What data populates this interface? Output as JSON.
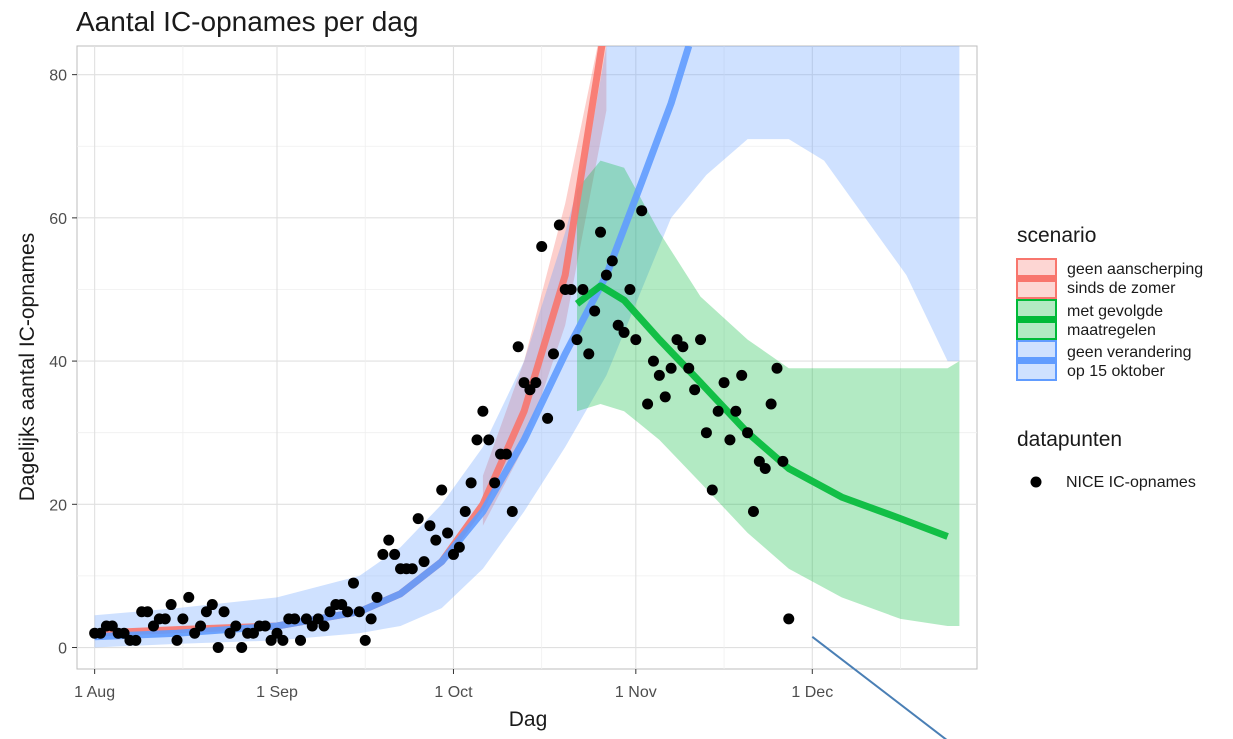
{
  "chart_data": {
    "type": "line",
    "title": "Aantal IC-opnames per dag",
    "xlabel": "Dag",
    "ylabel": "Dagelijks aantal IC-opnames",
    "x_ticks": [
      "1 Aug",
      "1 Sep",
      "1 Oct",
      "1 Nov",
      "1 Dec"
    ],
    "y_ticks": [
      "0",
      "20",
      "40",
      "60",
      "80"
    ],
    "xlim": [
      "2020-07-29",
      "2020-12-29"
    ],
    "ylim": [
      -3,
      84
    ],
    "legend_placement": "right",
    "legend": {
      "scenario_title": "scenario",
      "data_title": "datapunten",
      "data_label": "NICE IC-opnames"
    },
    "colors": {
      "red": "#f8766d",
      "green": "#00ba38",
      "blue": "#619cff",
      "points": "#000000",
      "annotation": "#4a7fb5"
    },
    "series": [
      {
        "name": "geen aanscherping\n sinds de zomer",
        "color": "#f8766d",
        "line": [
          [
            "2020-08-01",
            2
          ],
          [
            "2020-08-15",
            2.5
          ],
          [
            "2020-09-01",
            3
          ],
          [
            "2020-09-15",
            5
          ],
          [
            "2020-09-22",
            7.5
          ],
          [
            "2020-09-29",
            12
          ],
          [
            "2020-10-06",
            20
          ],
          [
            "2020-10-13",
            33
          ],
          [
            "2020-10-20",
            52
          ],
          [
            "2020-10-27",
            88
          ]
        ],
        "band_upper": [
          [
            "2020-10-06",
            24
          ],
          [
            "2020-10-13",
            40
          ],
          [
            "2020-10-20",
            62
          ],
          [
            "2020-10-27",
            90
          ]
        ],
        "band_lower": [
          [
            "2020-10-06",
            17
          ],
          [
            "2020-10-13",
            28
          ],
          [
            "2020-10-20",
            45
          ],
          [
            "2020-10-27",
            75
          ]
        ]
      },
      {
        "name": "met gevolgde\n maatregelen",
        "color": "#00ba38",
        "line": [
          [
            "2020-10-22",
            48
          ],
          [
            "2020-10-26",
            50.5
          ],
          [
            "2020-10-30",
            48.5
          ],
          [
            "2020-11-05",
            43
          ],
          [
            "2020-11-12",
            37
          ],
          [
            "2020-11-20",
            30
          ],
          [
            "2020-11-27",
            25
          ],
          [
            "2020-12-06",
            21
          ],
          [
            "2020-12-16",
            18
          ],
          [
            "2020-12-24",
            15.5
          ]
        ],
        "band_upper": [
          [
            "2020-10-22",
            64
          ],
          [
            "2020-10-26",
            68
          ],
          [
            "2020-10-30",
            67
          ],
          [
            "2020-11-05",
            58
          ],
          [
            "2020-11-12",
            49
          ],
          [
            "2020-11-20",
            43
          ],
          [
            "2020-11-27",
            39
          ],
          [
            "2020-12-24",
            39
          ],
          [
            "2020-12-26",
            40
          ]
        ],
        "band_lower": [
          [
            "2020-10-22",
            33
          ],
          [
            "2020-10-26",
            34
          ],
          [
            "2020-10-30",
            33
          ],
          [
            "2020-11-05",
            29
          ],
          [
            "2020-11-12",
            23
          ],
          [
            "2020-11-20",
            16
          ],
          [
            "2020-11-27",
            11
          ],
          [
            "2020-12-06",
            7
          ],
          [
            "2020-12-16",
            4
          ],
          [
            "2020-12-24",
            3
          ],
          [
            "2020-12-26",
            3
          ]
        ]
      },
      {
        "name": "geen verandering\n op 15 oktober",
        "color": "#619cff",
        "line": [
          [
            "2020-08-01",
            1.5
          ],
          [
            "2020-08-15",
            2
          ],
          [
            "2020-09-01",
            3
          ],
          [
            "2020-09-15",
            5
          ],
          [
            "2020-09-22",
            7.5
          ],
          [
            "2020-09-29",
            12
          ],
          [
            "2020-10-06",
            19
          ],
          [
            "2020-10-13",
            29
          ],
          [
            "2020-10-20",
            41
          ],
          [
            "2020-10-27",
            52
          ],
          [
            "2020-11-02",
            65
          ],
          [
            "2020-11-07",
            76
          ],
          [
            "2020-11-10",
            84
          ]
        ],
        "band_upper": [
          [
            "2020-08-01",
            4.5
          ],
          [
            "2020-08-15",
            5.5
          ],
          [
            "2020-09-01",
            7
          ],
          [
            "2020-09-15",
            10
          ],
          [
            "2020-09-22",
            14
          ],
          [
            "2020-09-29",
            20
          ],
          [
            "2020-10-06",
            28
          ],
          [
            "2020-10-13",
            40
          ],
          [
            "2020-10-20",
            58
          ],
          [
            "2020-10-24",
            70
          ],
          [
            "2020-10-27",
            84
          ],
          [
            "2020-12-26",
            84
          ]
        ],
        "band_lower": [
          [
            "2020-08-01",
            0
          ],
          [
            "2020-08-15",
            0.5
          ],
          [
            "2020-09-01",
            1
          ],
          [
            "2020-09-15",
            2
          ],
          [
            "2020-09-22",
            3
          ],
          [
            "2020-09-29",
            5.5
          ],
          [
            "2020-10-06",
            11
          ],
          [
            "2020-10-13",
            19
          ],
          [
            "2020-10-20",
            28
          ],
          [
            "2020-10-27",
            38
          ],
          [
            "2020-11-02",
            50
          ],
          [
            "2020-11-07",
            60
          ],
          [
            "2020-11-13",
            66
          ],
          [
            "2020-11-20",
            71
          ],
          [
            "2020-11-27",
            71
          ],
          [
            "2020-12-03",
            68
          ],
          [
            "2020-12-10",
            60
          ],
          [
            "2020-12-17",
            52
          ],
          [
            "2020-12-24",
            40
          ],
          [
            "2020-12-26",
            40
          ]
        ]
      }
    ],
    "points": [
      [
        "2020-08-01",
        2
      ],
      [
        "2020-08-02",
        2
      ],
      [
        "2020-08-03",
        3
      ],
      [
        "2020-08-04",
        3
      ],
      [
        "2020-08-05",
        2
      ],
      [
        "2020-08-06",
        2
      ],
      [
        "2020-08-07",
        1
      ],
      [
        "2020-08-08",
        1
      ],
      [
        "2020-08-09",
        5
      ],
      [
        "2020-08-10",
        5
      ],
      [
        "2020-08-11",
        3
      ],
      [
        "2020-08-12",
        4
      ],
      [
        "2020-08-13",
        4
      ],
      [
        "2020-08-14",
        6
      ],
      [
        "2020-08-15",
        1
      ],
      [
        "2020-08-16",
        4
      ],
      [
        "2020-08-17",
        7
      ],
      [
        "2020-08-18",
        2
      ],
      [
        "2020-08-19",
        3
      ],
      [
        "2020-08-20",
        5
      ],
      [
        "2020-08-21",
        6
      ],
      [
        "2020-08-22",
        0
      ],
      [
        "2020-08-23",
        5
      ],
      [
        "2020-08-24",
        2
      ],
      [
        "2020-08-25",
        3
      ],
      [
        "2020-08-26",
        0
      ],
      [
        "2020-08-27",
        2
      ],
      [
        "2020-08-28",
        2
      ],
      [
        "2020-08-29",
        3
      ],
      [
        "2020-08-30",
        3
      ],
      [
        "2020-08-31",
        1
      ],
      [
        "2020-09-01",
        2
      ],
      [
        "2020-09-02",
        1
      ],
      [
        "2020-09-03",
        4
      ],
      [
        "2020-09-04",
        4
      ],
      [
        "2020-09-05",
        1
      ],
      [
        "2020-09-06",
        4
      ],
      [
        "2020-09-07",
        3
      ],
      [
        "2020-09-08",
        4
      ],
      [
        "2020-09-09",
        3
      ],
      [
        "2020-09-10",
        5
      ],
      [
        "2020-09-11",
        6
      ],
      [
        "2020-09-12",
        6
      ],
      [
        "2020-09-13",
        5
      ],
      [
        "2020-09-14",
        9
      ],
      [
        "2020-09-15",
        5
      ],
      [
        "2020-09-16",
        1
      ],
      [
        "2020-09-17",
        4
      ],
      [
        "2020-09-18",
        7
      ],
      [
        "2020-09-19",
        13
      ],
      [
        "2020-09-20",
        15
      ],
      [
        "2020-09-21",
        13
      ],
      [
        "2020-09-22",
        11
      ],
      [
        "2020-09-23",
        11
      ],
      [
        "2020-09-24",
        11
      ],
      [
        "2020-09-25",
        18
      ],
      [
        "2020-09-26",
        12
      ],
      [
        "2020-09-27",
        17
      ],
      [
        "2020-09-28",
        15
      ],
      [
        "2020-09-29",
        22
      ],
      [
        "2020-09-30",
        16
      ],
      [
        "2020-10-01",
        13
      ],
      [
        "2020-10-02",
        14
      ],
      [
        "2020-10-03",
        19
      ],
      [
        "2020-10-04",
        23
      ],
      [
        "2020-10-05",
        29
      ],
      [
        "2020-10-06",
        33
      ],
      [
        "2020-10-07",
        29
      ],
      [
        "2020-10-08",
        23
      ],
      [
        "2020-10-09",
        27
      ],
      [
        "2020-10-10",
        27
      ],
      [
        "2020-10-11",
        19
      ],
      [
        "2020-10-12",
        42
      ],
      [
        "2020-10-13",
        37
      ],
      [
        "2020-10-14",
        36
      ],
      [
        "2020-10-15",
        37
      ],
      [
        "2020-10-16",
        56
      ],
      [
        "2020-10-17",
        32
      ],
      [
        "2020-10-18",
        41
      ],
      [
        "2020-10-19",
        59
      ],
      [
        "2020-10-20",
        50
      ],
      [
        "2020-10-21",
        50
      ],
      [
        "2020-10-22",
        43
      ],
      [
        "2020-10-23",
        50
      ],
      [
        "2020-10-24",
        41
      ],
      [
        "2020-10-25",
        47
      ],
      [
        "2020-10-26",
        58
      ],
      [
        "2020-10-27",
        52
      ],
      [
        "2020-10-28",
        54
      ],
      [
        "2020-10-29",
        45
      ],
      [
        "2020-10-30",
        44
      ],
      [
        "2020-10-31",
        50
      ],
      [
        "2020-11-01",
        43
      ],
      [
        "2020-11-02",
        61
      ],
      [
        "2020-11-03",
        34
      ],
      [
        "2020-11-04",
        40
      ],
      [
        "2020-11-05",
        38
      ],
      [
        "2020-11-06",
        35
      ],
      [
        "2020-11-07",
        39
      ],
      [
        "2020-11-08",
        43
      ],
      [
        "2020-11-09",
        42
      ],
      [
        "2020-11-10",
        39
      ],
      [
        "2020-11-11",
        36
      ],
      [
        "2020-11-12",
        43
      ],
      [
        "2020-11-13",
        30
      ],
      [
        "2020-11-14",
        22
      ],
      [
        "2020-11-15",
        33
      ],
      [
        "2020-11-16",
        37
      ],
      [
        "2020-11-17",
        29
      ],
      [
        "2020-11-18",
        33
      ],
      [
        "2020-11-19",
        38
      ],
      [
        "2020-11-20",
        30
      ],
      [
        "2020-11-21",
        19
      ],
      [
        "2020-11-22",
        26
      ],
      [
        "2020-11-23",
        25
      ],
      [
        "2020-11-24",
        34
      ],
      [
        "2020-11-25",
        39
      ],
      [
        "2020-11-26",
        26
      ],
      [
        "2020-11-27",
        4
      ]
    ],
    "annotation_line": [
      [
        "2020-12-01",
        1.5
      ],
      [
        "2020-12-24",
        -13
      ]
    ]
  }
}
